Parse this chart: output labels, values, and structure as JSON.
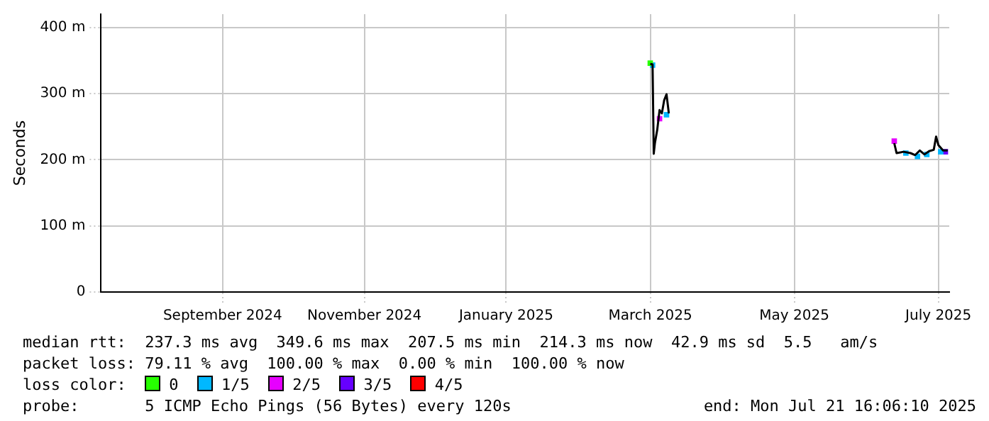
{
  "chart_data": {
    "type": "line",
    "ylabel": "Seconds",
    "xlim": [
      "2024-07-21T16:06",
      "2025-07-21T16:06"
    ],
    "xticks": [
      {
        "value": "2024-09-12",
        "label": "September 2024"
      },
      {
        "value": "2024-11-12",
        "label": "November 2024"
      },
      {
        "value": "2025-01-12",
        "label": "January 2025"
      },
      {
        "value": "2025-03-15",
        "label": "March 2025"
      },
      {
        "value": "2025-05-16",
        "label": "May 2025"
      },
      {
        "value": "2025-07-17",
        "label": "July 2025"
      }
    ],
    "ylim": [
      0,
      420
    ],
    "yticks": [
      0,
      {
        "value": 100,
        "label": "100 m"
      },
      {
        "value": 200,
        "label": "200 m"
      },
      {
        "value": 300,
        "label": "300 m"
      },
      {
        "value": 400,
        "label": "400 m"
      }
    ],
    "grid": true,
    "legend": "bottom",
    "legend_title": "loss color:",
    "series": [
      {
        "color": "#000000",
        "marker": "none",
        "x": [
          "2025-03-15",
          "2025-03-16",
          "2025-03-16T12:00",
          "2025-03-17",
          "2025-03-18",
          "2025-03-19",
          "2025-03-20",
          "2025-03-21",
          "2025-03-22",
          "2025-03-23",
          "2025-05-01",
          "2025-06-28",
          "2025-06-29",
          "2025-07-02",
          "2025-07-05",
          "2025-07-07",
          "2025-07-09",
          "2025-07-11",
          "2025-07-13",
          "2025-07-15",
          "2025-07-16",
          "2025-07-17",
          "2025-07-19",
          "2025-07-21"
        ],
        "values": [
          345,
          344,
          209,
          225,
          245,
          275,
          270,
          290,
          299,
          270,
          null,
          225,
          210,
          212,
          210,
          207,
          214,
          208,
          213,
          215,
          235,
          222,
          214,
          214
        ]
      },
      {
        "type": "scatter",
        "name": "0",
        "color": "#26ff00",
        "marker": "square",
        "x": [
          "2025-03-15"
        ],
        "values": [
          346
        ]
      },
      {
        "type": "scatter",
        "name": "1/5",
        "color": "#00b8ff",
        "marker": "square",
        "x": [
          "2025-03-16",
          "2025-03-22",
          "2025-07-03",
          "2025-07-08",
          "2025-07-12",
          "2025-07-18"
        ],
        "values": [
          343,
          268,
          210,
          205,
          208,
          212
        ]
      },
      {
        "type": "scatter",
        "name": "2/5",
        "color": "#e600ff",
        "marker": "square",
        "x": [
          "2025-03-19",
          "2025-06-28"
        ],
        "values": [
          262,
          228
        ]
      },
      {
        "type": "scatter",
        "name": "3/5",
        "color": "#6600ff",
        "marker": "square",
        "x": [
          "2025-07-20"
        ],
        "values": [
          212
        ]
      },
      {
        "type": "scatter",
        "name": "4/5",
        "color": "#ff0000",
        "marker": "square"
      }
    ],
    "annotations": [
      "median rtt:  237.3 ms avg  349.6 ms max  207.5 ms min  214.3 ms now  42.9 ms sd  5.5   am/s",
      "packet loss: 79.11 % avg  100.00 % max  0.00 % min  100.00 % now",
      "probe:       5 ICMP Echo Pings (56 Bytes) every 120s",
      "end: Mon Jul 21 16:06:10 2025"
    ]
  }
}
